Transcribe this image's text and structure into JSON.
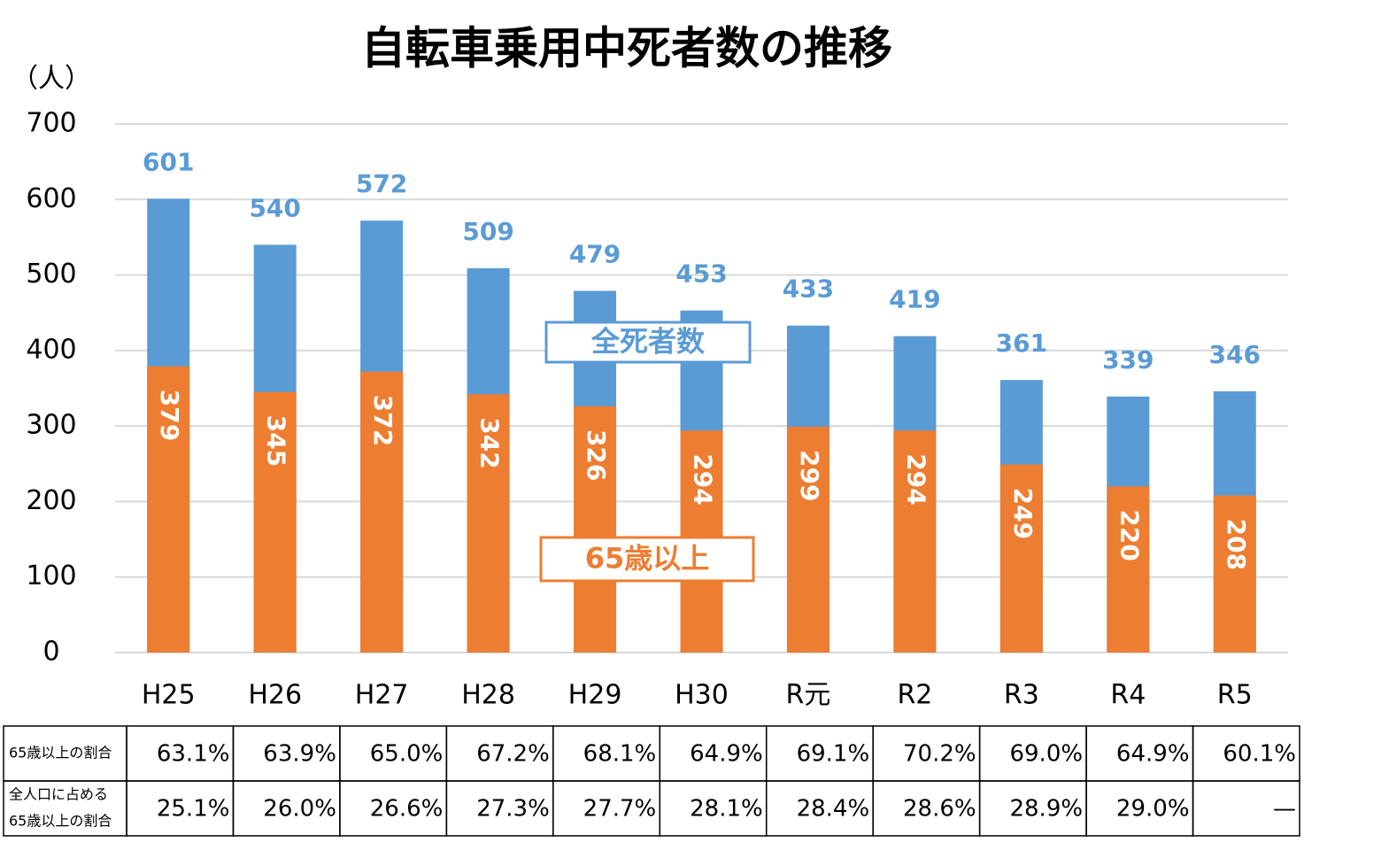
{
  "chart_data": {
    "type": "bar",
    "title": "自転車乗用中死者数の推移",
    "y_label": "（人）",
    "categories": [
      "H25",
      "H26",
      "H27",
      "H28",
      "H29",
      "H30",
      "R元",
      "R2",
      "R3",
      "R4",
      "R5"
    ],
    "series": [
      {
        "name": "全死者数",
        "color": "#5b9bd5",
        "values": [
          601,
          540,
          572,
          509,
          479,
          453,
          433,
          419,
          361,
          339,
          346
        ]
      },
      {
        "name": "65歳以上",
        "color": "#ed7d31",
        "values": [
          379,
          345,
          372,
          342,
          326,
          294,
          299,
          294,
          249,
          220,
          208
        ]
      }
    ],
    "ylim": [
      0,
      700
    ],
    "yticks": [
      0,
      100,
      200,
      300,
      400,
      500,
      600,
      700
    ],
    "grid": true,
    "table": {
      "rows": [
        {
          "label": [
            "65歳以上の割合"
          ],
          "cells": [
            "63.1%",
            "63.9%",
            "65.0%",
            "67.2%",
            "68.1%",
            "64.9%",
            "69.1%",
            "70.2%",
            "69.0%",
            "64.9%",
            "60.1%"
          ]
        },
        {
          "label": [
            "全人口に占める",
            "65歳以上の割合"
          ],
          "cells": [
            "25.1%",
            "26.0%",
            "26.6%",
            "27.3%",
            "27.7%",
            "28.1%",
            "28.4%",
            "28.6%",
            "28.9%",
            "29.0%",
            "—"
          ]
        }
      ]
    }
  }
}
